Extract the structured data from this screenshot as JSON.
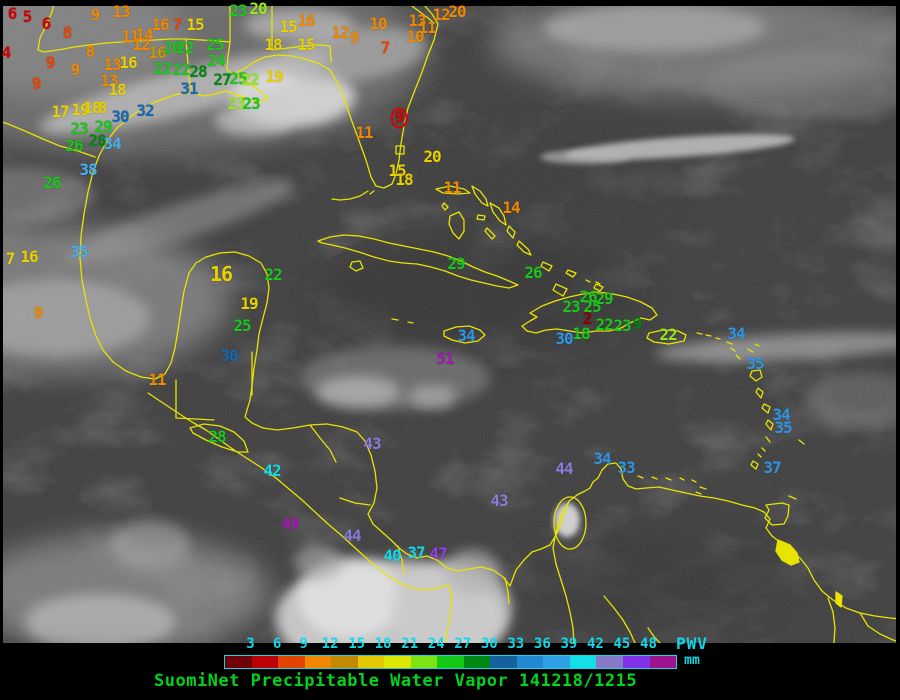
{
  "title": {
    "text": "SuomiNet Precipitable Water Vapor 141218/1215",
    "color": "#00d41c"
  },
  "units_label": {
    "line1": "PWV",
    "line2": "mm",
    "color": "#10d8e8"
  },
  "colorbar": {
    "ticks": [
      "3",
      "6",
      "9",
      "12",
      "15",
      "18",
      "21",
      "24",
      "27",
      "30",
      "33",
      "36",
      "39",
      "42",
      "45",
      "48"
    ],
    "tick_color": "#10d8e8",
    "border_color": "#10d8e8",
    "segments": [
      "#700008",
      "#bc0008",
      "#e04400",
      "#ef8800",
      "#c28a00",
      "#e6c800",
      "#dce800",
      "#7ce414",
      "#16c816",
      "#008814",
      "#15619e",
      "#2388d2",
      "#2f9fe6",
      "#12dfe8",
      "#8579c8",
      "#8233e8",
      "#9e148e"
    ]
  },
  "palette": {
    "darkred": "#8e0000",
    "red": "#d40000",
    "orangered": "#e84400",
    "orange": "#f08800",
    "darkgold": "#c89800",
    "yellow": "#e8d200",
    "yellowgreen": "#96e818",
    "green": "#1ac81a",
    "darkgreen": "#008810",
    "darkblue": "#1868b0",
    "blue": "#2f96e6",
    "lightblue": "#49b0f0",
    "cyan": "#14d8e8",
    "lightpurple": "#8a7ada",
    "purple": "#8f3fe8",
    "magenta": "#a318b4"
  },
  "map_colors": {
    "coastline": "#e8e400",
    "background": "#3a3a3a"
  },
  "station_fields": [
    "value",
    "x",
    "y",
    "color",
    "flag"
  ],
  "stations": [
    [
      "6",
      12,
      14,
      "red"
    ],
    [
      "5",
      27,
      17,
      "red"
    ],
    [
      "6",
      46,
      24,
      "red"
    ],
    [
      "8",
      67,
      33,
      "orangered"
    ],
    [
      "4",
      6,
      53,
      "red"
    ],
    [
      "8",
      90,
      52,
      "orange"
    ],
    [
      "9",
      50,
      63,
      "orangered"
    ],
    [
      "9",
      75,
      70,
      "orange"
    ],
    [
      "9",
      36,
      84,
      "orangered"
    ],
    [
      "9",
      95,
      15,
      "orange"
    ],
    [
      "13",
      121,
      12,
      "orange"
    ],
    [
      "11",
      130,
      37,
      "orange"
    ],
    [
      "14",
      144,
      35,
      "orange"
    ],
    [
      "12",
      141,
      45,
      "orange"
    ],
    [
      "16",
      160,
      25,
      "orange"
    ],
    [
      "7",
      177,
      25,
      "orangered"
    ],
    [
      "15",
      195,
      25,
      "yellow"
    ],
    [
      "13",
      112,
      65,
      "orange"
    ],
    [
      "16",
      128,
      63,
      "yellow"
    ],
    [
      "16",
      157,
      53,
      "darkgold"
    ],
    [
      "13",
      109,
      81,
      "orange"
    ],
    [
      "18",
      117,
      90,
      "yellow"
    ],
    [
      "17",
      60,
      112,
      "yellow"
    ],
    [
      "19",
      80,
      110,
      "yellow"
    ],
    [
      "18",
      92,
      108,
      "yellow"
    ],
    [
      "8",
      102,
      108,
      "yellow"
    ],
    [
      "23",
      79,
      129,
      "green"
    ],
    [
      "29",
      103,
      127,
      "green"
    ],
    [
      "26",
      74,
      146,
      "green"
    ],
    [
      "28",
      97,
      141,
      "darkgreen"
    ],
    [
      "34",
      112,
      144,
      "lightblue"
    ],
    [
      "30",
      120,
      117,
      "darkblue"
    ],
    [
      "32",
      145,
      111,
      "darkblue"
    ],
    [
      "38",
      88,
      170,
      "lightblue"
    ],
    [
      "26",
      52,
      183,
      "green"
    ],
    [
      "35",
      79,
      252,
      "lightblue"
    ],
    [
      "16",
      29,
      257,
      "yellow"
    ],
    [
      "7",
      10,
      259,
      "yellow"
    ],
    [
      "9",
      38,
      313,
      "orange"
    ],
    [
      "20",
      172,
      48,
      "green"
    ],
    [
      "22",
      185,
      48,
      "green"
    ],
    [
      "25",
      215,
      45,
      "green"
    ],
    [
      "24",
      216,
      61,
      "green"
    ],
    [
      "22",
      162,
      69,
      "green"
    ],
    [
      "22",
      181,
      70,
      "green"
    ],
    [
      "28",
      198,
      72,
      "darkgreen"
    ],
    [
      "31",
      189,
      89,
      "darkblue"
    ],
    [
      "27",
      222,
      80,
      "darkgreen"
    ],
    [
      "25",
      238,
      79,
      "green"
    ],
    [
      "22",
      250,
      80,
      "yellowgreen"
    ],
    [
      "23",
      236,
      104,
      "yellowgreen"
    ],
    [
      "23",
      251,
      104,
      "green"
    ],
    [
      "23",
      238,
      11,
      "green"
    ],
    [
      "20",
      258,
      9,
      "yellowgreen"
    ],
    [
      "15",
      288,
      27,
      "yellow"
    ],
    [
      "18",
      273,
      45,
      "yellow"
    ],
    [
      "19",
      274,
      77,
      "yellow"
    ],
    [
      "16",
      306,
      21,
      "orange"
    ],
    [
      "15",
      306,
      45,
      "yellow"
    ],
    [
      "12",
      340,
      33,
      "orange"
    ],
    [
      "9",
      354,
      38,
      "orange"
    ],
    [
      "10",
      378,
      24,
      "orange"
    ],
    [
      "13",
      417,
      21,
      "orange"
    ],
    [
      "11",
      427,
      28,
      "orange"
    ],
    [
      "10",
      415,
      37,
      "orange"
    ],
    [
      "12",
      441,
      15,
      "orange"
    ],
    [
      "20",
      457,
      12,
      "orange"
    ],
    [
      "7",
      385,
      48,
      "orangered"
    ],
    [
      "9",
      399,
      118,
      "red",
      "ring"
    ],
    [
      "11",
      364,
      133,
      "orange"
    ],
    [
      "20",
      432,
      157,
      "yellow"
    ],
    [
      "15",
      397,
      171,
      "yellow"
    ],
    [
      "18",
      404,
      180,
      "yellow"
    ],
    [
      "11",
      452,
      188,
      "orange"
    ],
    [
      "14",
      511,
      208,
      "orange"
    ],
    [
      "29",
      456,
      264,
      "green"
    ],
    [
      "26",
      533,
      273,
      "green"
    ],
    [
      "16",
      221,
      274,
      "yellow",
      "big"
    ],
    [
      "22",
      273,
      275,
      "green"
    ],
    [
      "19",
      249,
      304,
      "yellow"
    ],
    [
      "25",
      242,
      326,
      "green"
    ],
    [
      "30",
      229,
      356,
      "darkblue"
    ],
    [
      "11",
      157,
      380,
      "orange"
    ],
    [
      "28",
      217,
      437,
      "green"
    ],
    [
      "42",
      272,
      471,
      "cyan"
    ],
    [
      "43",
      372,
      444,
      "lightpurple"
    ],
    [
      "49",
      290,
      524,
      "magenta"
    ],
    [
      "44",
      352,
      536,
      "lightpurple"
    ],
    [
      "40",
      392,
      556,
      "cyan"
    ],
    [
      "37",
      416,
      553,
      "cyan"
    ],
    [
      "47",
      438,
      554,
      "purple"
    ],
    [
      "34",
      466,
      336,
      "blue"
    ],
    [
      "51",
      445,
      359,
      "magenta"
    ],
    [
      "23",
      571,
      307,
      "green"
    ],
    [
      "26",
      588,
      297,
      "green"
    ],
    [
      "29",
      604,
      299,
      "green"
    ],
    [
      "25",
      592,
      307,
      "green"
    ],
    [
      "2",
      587,
      319,
      "darkred"
    ],
    [
      "22",
      604,
      325,
      "green"
    ],
    [
      "23",
      622,
      326,
      "green"
    ],
    [
      "9",
      637,
      324,
      "darkgreen"
    ],
    [
      "18",
      581,
      334,
      "green"
    ],
    [
      "30",
      564,
      339,
      "blue"
    ],
    [
      "22",
      668,
      335,
      "yellowgreen"
    ],
    [
      "34",
      736,
      334,
      "blue"
    ],
    [
      "35",
      755,
      364,
      "blue"
    ],
    [
      "34",
      781,
      415,
      "blue"
    ],
    [
      "35",
      783,
      428,
      "blue"
    ],
    [
      "37",
      772,
      468,
      "blue"
    ],
    [
      "44",
      564,
      469,
      "lightpurple"
    ],
    [
      "34",
      602,
      459,
      "blue"
    ],
    [
      "33",
      626,
      468,
      "blue"
    ],
    [
      "43",
      499,
      501,
      "lightpurple"
    ]
  ]
}
